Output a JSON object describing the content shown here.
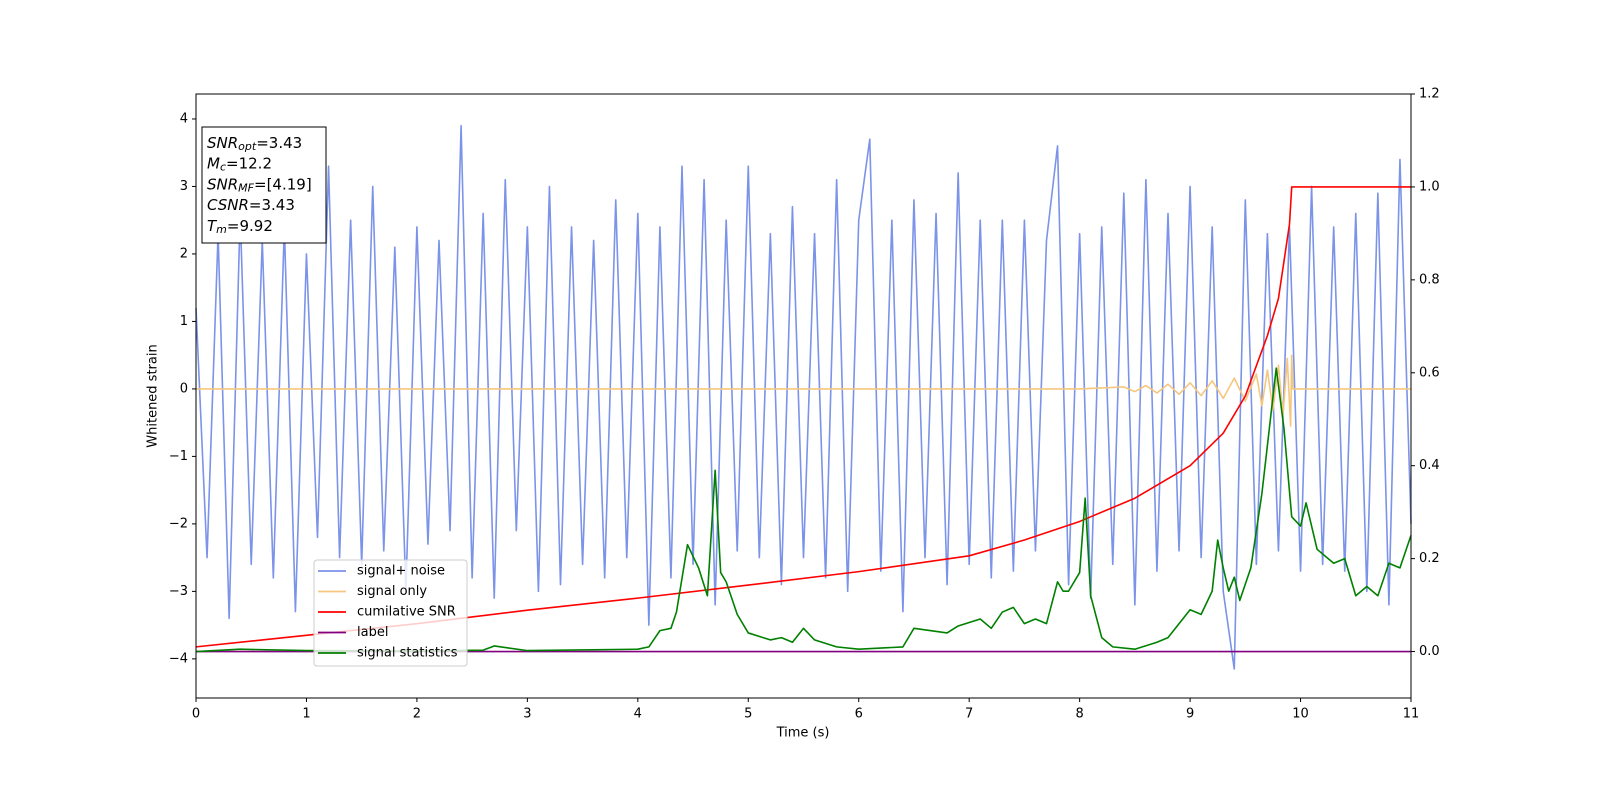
{
  "chart_data": {
    "type": "line",
    "xlabel": "Time (s)",
    "ylabel": "Whitened strain",
    "xlim": [
      0,
      11
    ],
    "xticks": [
      0,
      1,
      2,
      3,
      4,
      5,
      6,
      7,
      8,
      9,
      10,
      11
    ],
    "ylim": [
      -4.58,
      4.37
    ],
    "yticks": [
      {
        "value": -4,
        "label": "−4"
      },
      {
        "value": -3,
        "label": "−3"
      },
      {
        "value": -2,
        "label": "−2"
      },
      {
        "value": -1,
        "label": "−1"
      },
      0,
      1,
      2,
      3,
      4
    ],
    "y2lim": [
      -0.1,
      1.2
    ],
    "y2ticks": [
      {
        "value": 0,
        "label": "0.0"
      },
      {
        "value": 0.2,
        "label": "0.2"
      },
      {
        "value": 0.4,
        "label": "0.4"
      },
      {
        "value": 0.6,
        "label": "0.6"
      },
      {
        "value": 0.8,
        "label": "0.8"
      },
      {
        "value": 1,
        "label": "1.0"
      },
      {
        "value": 1.2,
        "label": "1.2"
      }
    ],
    "legend": "lower left",
    "annotation": [
      {
        "symbol": "SNR",
        "subscript": "opt",
        "text": "=3.43"
      },
      {
        "symbol": "M",
        "subscript": "c",
        "text": "=12.2"
      },
      {
        "symbol": "SNR",
        "subscript": "MF",
        "text": "=[4.19]"
      },
      {
        "symbol": "CSNR",
        "text": "=3.43"
      },
      {
        "symbol": "T",
        "subscript": "m",
        "text": "=9.92"
      }
    ],
    "series": [
      {
        "name": "signal+ noise",
        "color": "#7b93e8",
        "x": [
          0,
          0.1,
          0.2,
          0.3,
          0.4,
          0.5,
          0.6,
          0.7,
          0.8,
          0.9,
          1,
          1.1,
          1.2,
          1.3,
          1.4,
          1.5,
          1.6,
          1.7,
          1.8,
          1.9,
          2,
          2.1,
          2.2,
          2.3,
          2.4,
          2.5,
          2.6,
          2.7,
          2.8,
          2.9,
          3,
          3.1,
          3.2,
          3.3,
          3.4,
          3.5,
          3.6,
          3.7,
          3.8,
          3.9,
          4,
          4.1,
          4.2,
          4.3,
          4.4,
          4.5,
          4.6,
          4.7,
          4.8,
          4.9,
          5,
          5.1,
          5.2,
          5.3,
          5.4,
          5.5,
          5.6,
          5.7,
          5.8,
          5.9,
          6,
          6.1,
          6.2,
          6.3,
          6.4,
          6.5,
          6.6,
          6.7,
          6.8,
          6.9,
          7,
          7.1,
          7.2,
          7.3,
          7.4,
          7.5,
          7.6,
          7.7,
          7.8,
          7.9,
          8,
          8.1,
          8.2,
          8.3,
          8.4,
          8.5,
          8.6,
          8.7,
          8.8,
          8.9,
          9,
          9.1,
          9.2,
          9.3,
          9.4,
          9.5,
          9.6,
          9.7,
          9.8,
          9.9,
          10,
          10.1,
          10.2,
          10.3,
          10.4,
          10.5,
          10.6,
          10.7,
          10.8,
          10.9,
          11
        ],
        "values": [
          1.2,
          -2.5,
          2.3,
          -3.4,
          2.6,
          -2.6,
          2.2,
          -2.8,
          2.4,
          -3.3,
          2.0,
          -2.2,
          3.3,
          -2.5,
          2.5,
          -2.6,
          3.0,
          -2.4,
          2.1,
          -3.0,
          2.4,
          -2.3,
          2.2,
          -2.1,
          3.9,
          -2.8,
          2.6,
          -3.1,
          3.1,
          -2.1,
          2.4,
          -3.0,
          3.0,
          -2.9,
          2.4,
          -2.6,
          2.2,
          -2.8,
          2.8,
          -2.5,
          2.6,
          -3.5,
          2.4,
          -2.8,
          3.3,
          -2.6,
          3.1,
          -3.2,
          2.5,
          -2.4,
          3.3,
          -2.5,
          2.3,
          -2.9,
          2.7,
          -2.5,
          2.3,
          -2.8,
          3.1,
          -3.0,
          2.5,
          3.7,
          -2.7,
          2.5,
          -3.3,
          2.8,
          -2.5,
          2.6,
          -2.9,
          3.2,
          -2.6,
          2.5,
          -2.8,
          2.5,
          -2.7,
          2.5,
          -2.4,
          2.2,
          3.6,
          -2.9,
          2.3,
          -3.1,
          2.4,
          -2.6,
          2.9,
          -3.2,
          3.1,
          -2.7,
          2.6,
          -2.4,
          3.0,
          -2.5,
          2.4,
          -3.0,
          -4.15,
          2.8,
          -2.6,
          2.3,
          -2.4,
          2.4,
          -2.7,
          3.0,
          -2.6,
          2.4,
          -2.7,
          2.6,
          -3.0,
          2.9,
          -3.2,
          3.4,
          -2.0
        ]
      },
      {
        "name": "signal only",
        "color": "#f5c77e",
        "x": [
          0,
          8,
          8.4,
          8.5,
          8.6,
          8.7,
          8.8,
          8.9,
          9,
          9.1,
          9.2,
          9.3,
          9.4,
          9.5,
          9.6,
          9.65,
          9.7,
          9.75,
          9.8,
          9.84,
          9.88,
          9.91,
          9.92,
          9.93,
          11
        ],
        "values": [
          0,
          0,
          0.03,
          -0.04,
          0.05,
          -0.06,
          0.07,
          -0.08,
          0.09,
          -0.1,
          0.12,
          -0.14,
          0.16,
          -0.18,
          0.22,
          -0.25,
          0.28,
          -0.31,
          0.35,
          -0.4,
          0.45,
          -0.55,
          0.5,
          0,
          0
        ]
      },
      {
        "name": "cumilative SNR",
        "color": "#ff0000",
        "axis": "y2",
        "x": [
          0,
          1,
          2,
          3,
          4,
          5,
          6,
          7,
          7.5,
          8,
          8.5,
          9,
          9.3,
          9.5,
          9.7,
          9.8,
          9.9,
          9.92,
          11
        ],
        "values": [
          0.01,
          0.035,
          0.06,
          0.089,
          0.115,
          0.143,
          0.172,
          0.206,
          0.24,
          0.28,
          0.33,
          0.4,
          0.47,
          0.55,
          0.68,
          0.76,
          0.92,
          1.0,
          1.0
        ]
      },
      {
        "name": "label",
        "color": "#800080",
        "axis": "y2",
        "x": [
          0,
          11
        ],
        "values": [
          0,
          0
        ]
      },
      {
        "name": "signal statistics",
        "color": "#008000",
        "axis": "y2",
        "x": [
          0,
          0.4,
          1,
          2,
          2.6,
          2.7,
          3,
          4,
          4.1,
          4.2,
          4.3,
          4.35,
          4.45,
          4.55,
          4.63,
          4.7,
          4.75,
          4.8,
          4.9,
          5,
          5.2,
          5.3,
          5.4,
          5.5,
          5.6,
          5.8,
          6,
          6.4,
          6.5,
          6.8,
          6.9,
          7.1,
          7.2,
          7.3,
          7.4,
          7.5,
          7.6,
          7.7,
          7.8,
          7.85,
          7.9,
          8,
          8.05,
          8.1,
          8.2,
          8.3,
          8.5,
          8.7,
          8.8,
          9,
          9.1,
          9.2,
          9.25,
          9.3,
          9.35,
          9.4,
          9.45,
          9.55,
          9.65,
          9.78,
          9.85,
          9.92,
          10,
          10.05,
          10.15,
          10.3,
          10.4,
          10.5,
          10.6,
          10.7,
          10.8,
          10.9,
          11
        ],
        "values": [
          0,
          0.005,
          0.002,
          0.001,
          0.003,
          0.012,
          0.002,
          0.005,
          0.01,
          0.045,
          0.05,
          0.085,
          0.23,
          0.18,
          0.12,
          0.39,
          0.17,
          0.15,
          0.08,
          0.04,
          0.025,
          0.03,
          0.02,
          0.05,
          0.025,
          0.01,
          0.005,
          0.01,
          0.05,
          0.04,
          0.055,
          0.07,
          0.05,
          0.085,
          0.095,
          0.06,
          0.07,
          0.06,
          0.15,
          0.13,
          0.13,
          0.17,
          0.33,
          0.12,
          0.03,
          0.01,
          0.005,
          0.02,
          0.03,
          0.09,
          0.08,
          0.13,
          0.24,
          0.18,
          0.13,
          0.16,
          0.11,
          0.18,
          0.34,
          0.61,
          0.48,
          0.29,
          0.27,
          0.32,
          0.22,
          0.19,
          0.2,
          0.12,
          0.14,
          0.12,
          0.19,
          0.18,
          0.25
        ]
      }
    ]
  }
}
